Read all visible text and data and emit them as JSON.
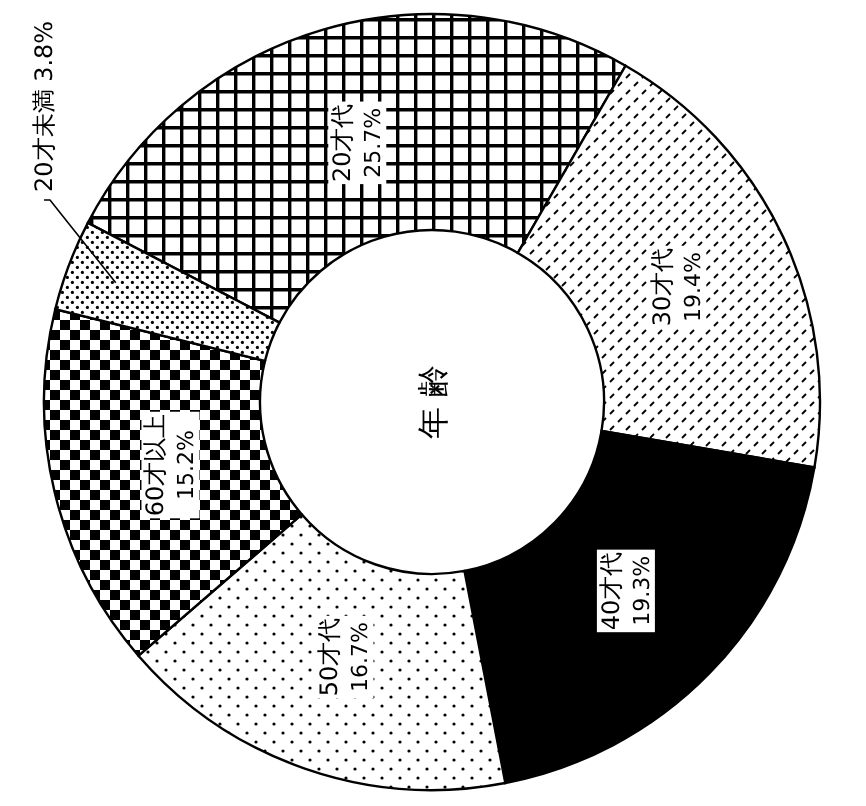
{
  "chart_data": {
    "type": "donut",
    "title": "年 齢",
    "categories": [
      "20才代",
      "30才代",
      "40才代",
      "50才代",
      "60才以上",
      "20才未満"
    ],
    "values": [
      25.7,
      19.4,
      19.3,
      16.7,
      15.2,
      3.8
    ],
    "value_labels": [
      "25.7%",
      "19.4%",
      "19.3%",
      "16.7%",
      "15.2%",
      "3.8%"
    ]
  }
}
